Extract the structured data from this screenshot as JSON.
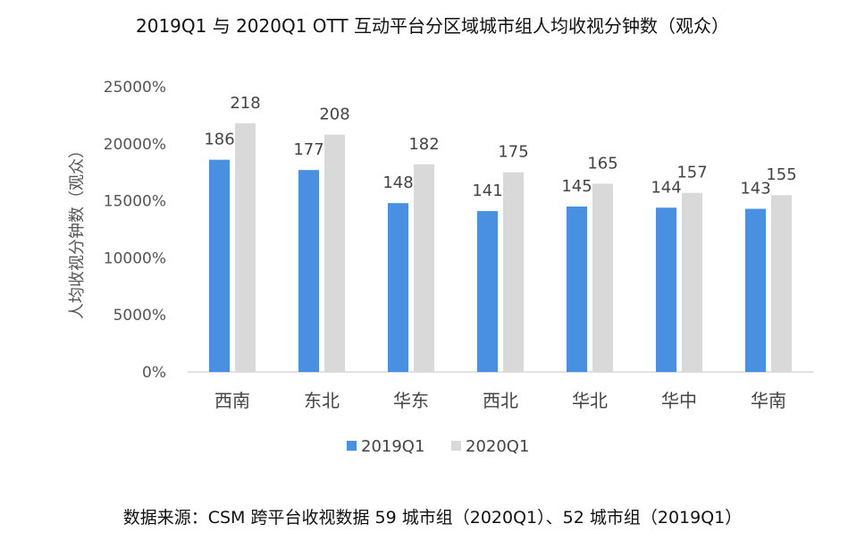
{
  "chart_data": {
    "type": "bar",
    "title": "2019Q1 与 2020Q1  OTT 互动平台分区域城市组人均收视分钟数（观众）",
    "ylabel": "人均收视分钟数（观众）",
    "ylim": [
      0,
      25000
    ],
    "yticks": [
      0,
      5000,
      10000,
      15000,
      20000,
      25000
    ],
    "ytick_labels": [
      "0%",
      "5000%",
      "10000%",
      "15000%",
      "20000%",
      "25000%"
    ],
    "categories": [
      "西南",
      "东北",
      "华东",
      "西北",
      "华北",
      "华中",
      "华南"
    ],
    "series": [
      {
        "name": "2019Q1",
        "color": "#4a90e2",
        "values": [
          186,
          177,
          148,
          141,
          145,
          144,
          143
        ]
      },
      {
        "name": "2020Q1",
        "color": "#d9d9d9",
        "values": [
          218,
          208,
          182,
          175,
          165,
          157,
          155
        ]
      }
    ],
    "legend": "bottom-center",
    "grid": false
  },
  "source_note": "数据来源：CSM 跨平台收视数据  59 城市组（2020Q1）、52 城市组（2019Q1）"
}
